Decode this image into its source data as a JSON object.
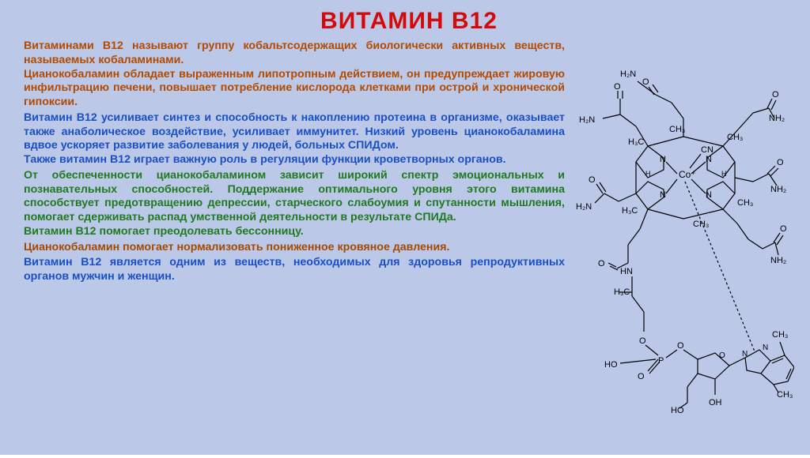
{
  "colors": {
    "background": "#bcc8e8",
    "title": "#d40a0a",
    "para1": "#b24a00",
    "para2": "#1a4fc4",
    "para3": "#1f7a1f",
    "para4": "#a44a00",
    "para5": "#1a4fc4",
    "diagram_stroke": "#000000"
  },
  "typography": {
    "title_fontsize": 30,
    "body_fontsize": 14.2,
    "title_weight": "bold",
    "body_weight": "bold"
  },
  "title": "ВИТАМИН В12",
  "paragraphs": [
    {
      "color_key": "para1",
      "text": "Витаминами В12 называют группу кобальтсодержащих биологически активных веществ, называемых кобаламинами.\nЦианокобаламин обладает выраженным липотропным действием, он предупреждает жировую инфильтрацию печени, повышает потребление кислорода клетками при острой и хронической гипоксии."
    },
    {
      "color_key": "para2",
      "text": "Витамин В12 усиливает синтез и способность к накоплению протеина в организме, оказывает также анаболическое воздействие, усиливает иммунитет. Низкий уровень цианокобаламина вдвое ускоряет развитие заболевания у людей, больных СПИДом.\nТакже витамин В12 играет важную роль в регуляции функции кроветворных органов."
    },
    {
      "color_key": "para3",
      "text": "От обеспеченности цианокобаламином зависит широкий спектр эмоциональных и познавательных способностей. Поддержание оптимального уровня этого витамина способствует предотвращению депрессии, старческого слабоумия и спутанности мышления, помогает сдерживать распад умственной деятельности в результате СПИДа.\nВитамин В12 помогает преодолевать бессонницу."
    },
    {
      "color_key": "para4",
      "text": "Цианокобаламин помогает нормализовать пониженное кровяное давления."
    },
    {
      "color_key": "para5",
      "text": "Витамин В12 является одним из веществ, необходимых для здоровья репродуктивных органов мужчин и женщин."
    }
  ],
  "diagram": {
    "type": "chemical-structure",
    "name": "cyanocobalamin",
    "labels": [
      "H₂N",
      "O",
      "NH₂",
      "CH₃",
      "H₃C",
      "Co⁺",
      "CN",
      "N",
      "HN",
      "HO",
      "OH",
      "P"
    ],
    "atom_colors": {
      "default": "#000000"
    },
    "bond_stroke": "#000000",
    "bond_width": 1.2
  }
}
